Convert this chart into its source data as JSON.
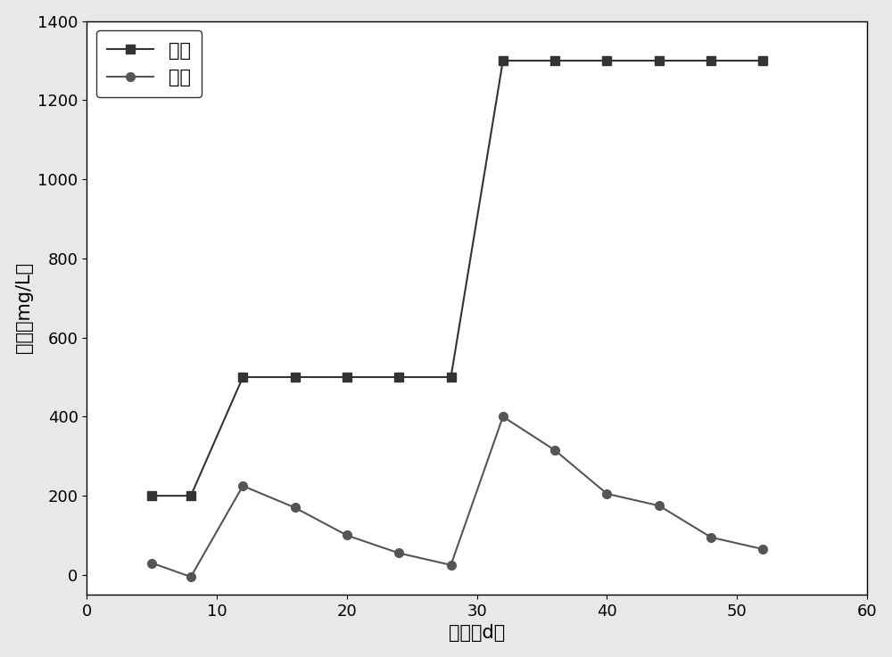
{
  "title": "",
  "xlabel": "时间（d）",
  "ylabel": "氨氮（mg/L）",
  "xlim": [
    0,
    60
  ],
  "ylim": [
    -50,
    1400
  ],
  "xticks": [
    0,
    10,
    20,
    30,
    40,
    50,
    60
  ],
  "yticks": [
    0,
    200,
    400,
    600,
    800,
    1000,
    1200,
    1400
  ],
  "series_inlet": {
    "label": "进水",
    "x": [
      5,
      8,
      12,
      16,
      20,
      24,
      28,
      32,
      36,
      40,
      44,
      48,
      52
    ],
    "y": [
      200,
      200,
      500,
      500,
      500,
      500,
      500,
      1300,
      1300,
      1300,
      1300,
      1300,
      1300
    ],
    "color": "#333333",
    "marker": "s",
    "markersize": 7,
    "linewidth": 1.5
  },
  "series_outlet": {
    "label": "出水",
    "x": [
      5,
      8,
      12,
      16,
      20,
      24,
      28,
      32,
      36,
      40,
      44,
      48,
      52
    ],
    "y": [
      30,
      -5,
      225,
      170,
      100,
      55,
      25,
      400,
      315,
      205,
      175,
      95,
      65
    ],
    "color": "#555555",
    "marker": "o",
    "markersize": 7,
    "linewidth": 1.5
  },
  "legend_loc": "upper left",
  "legend_fontsize": 15,
  "axis_fontsize": 15,
  "tick_fontsize": 13,
  "figure_bg": "#e8e8e8",
  "plot_bg": "#ffffff"
}
